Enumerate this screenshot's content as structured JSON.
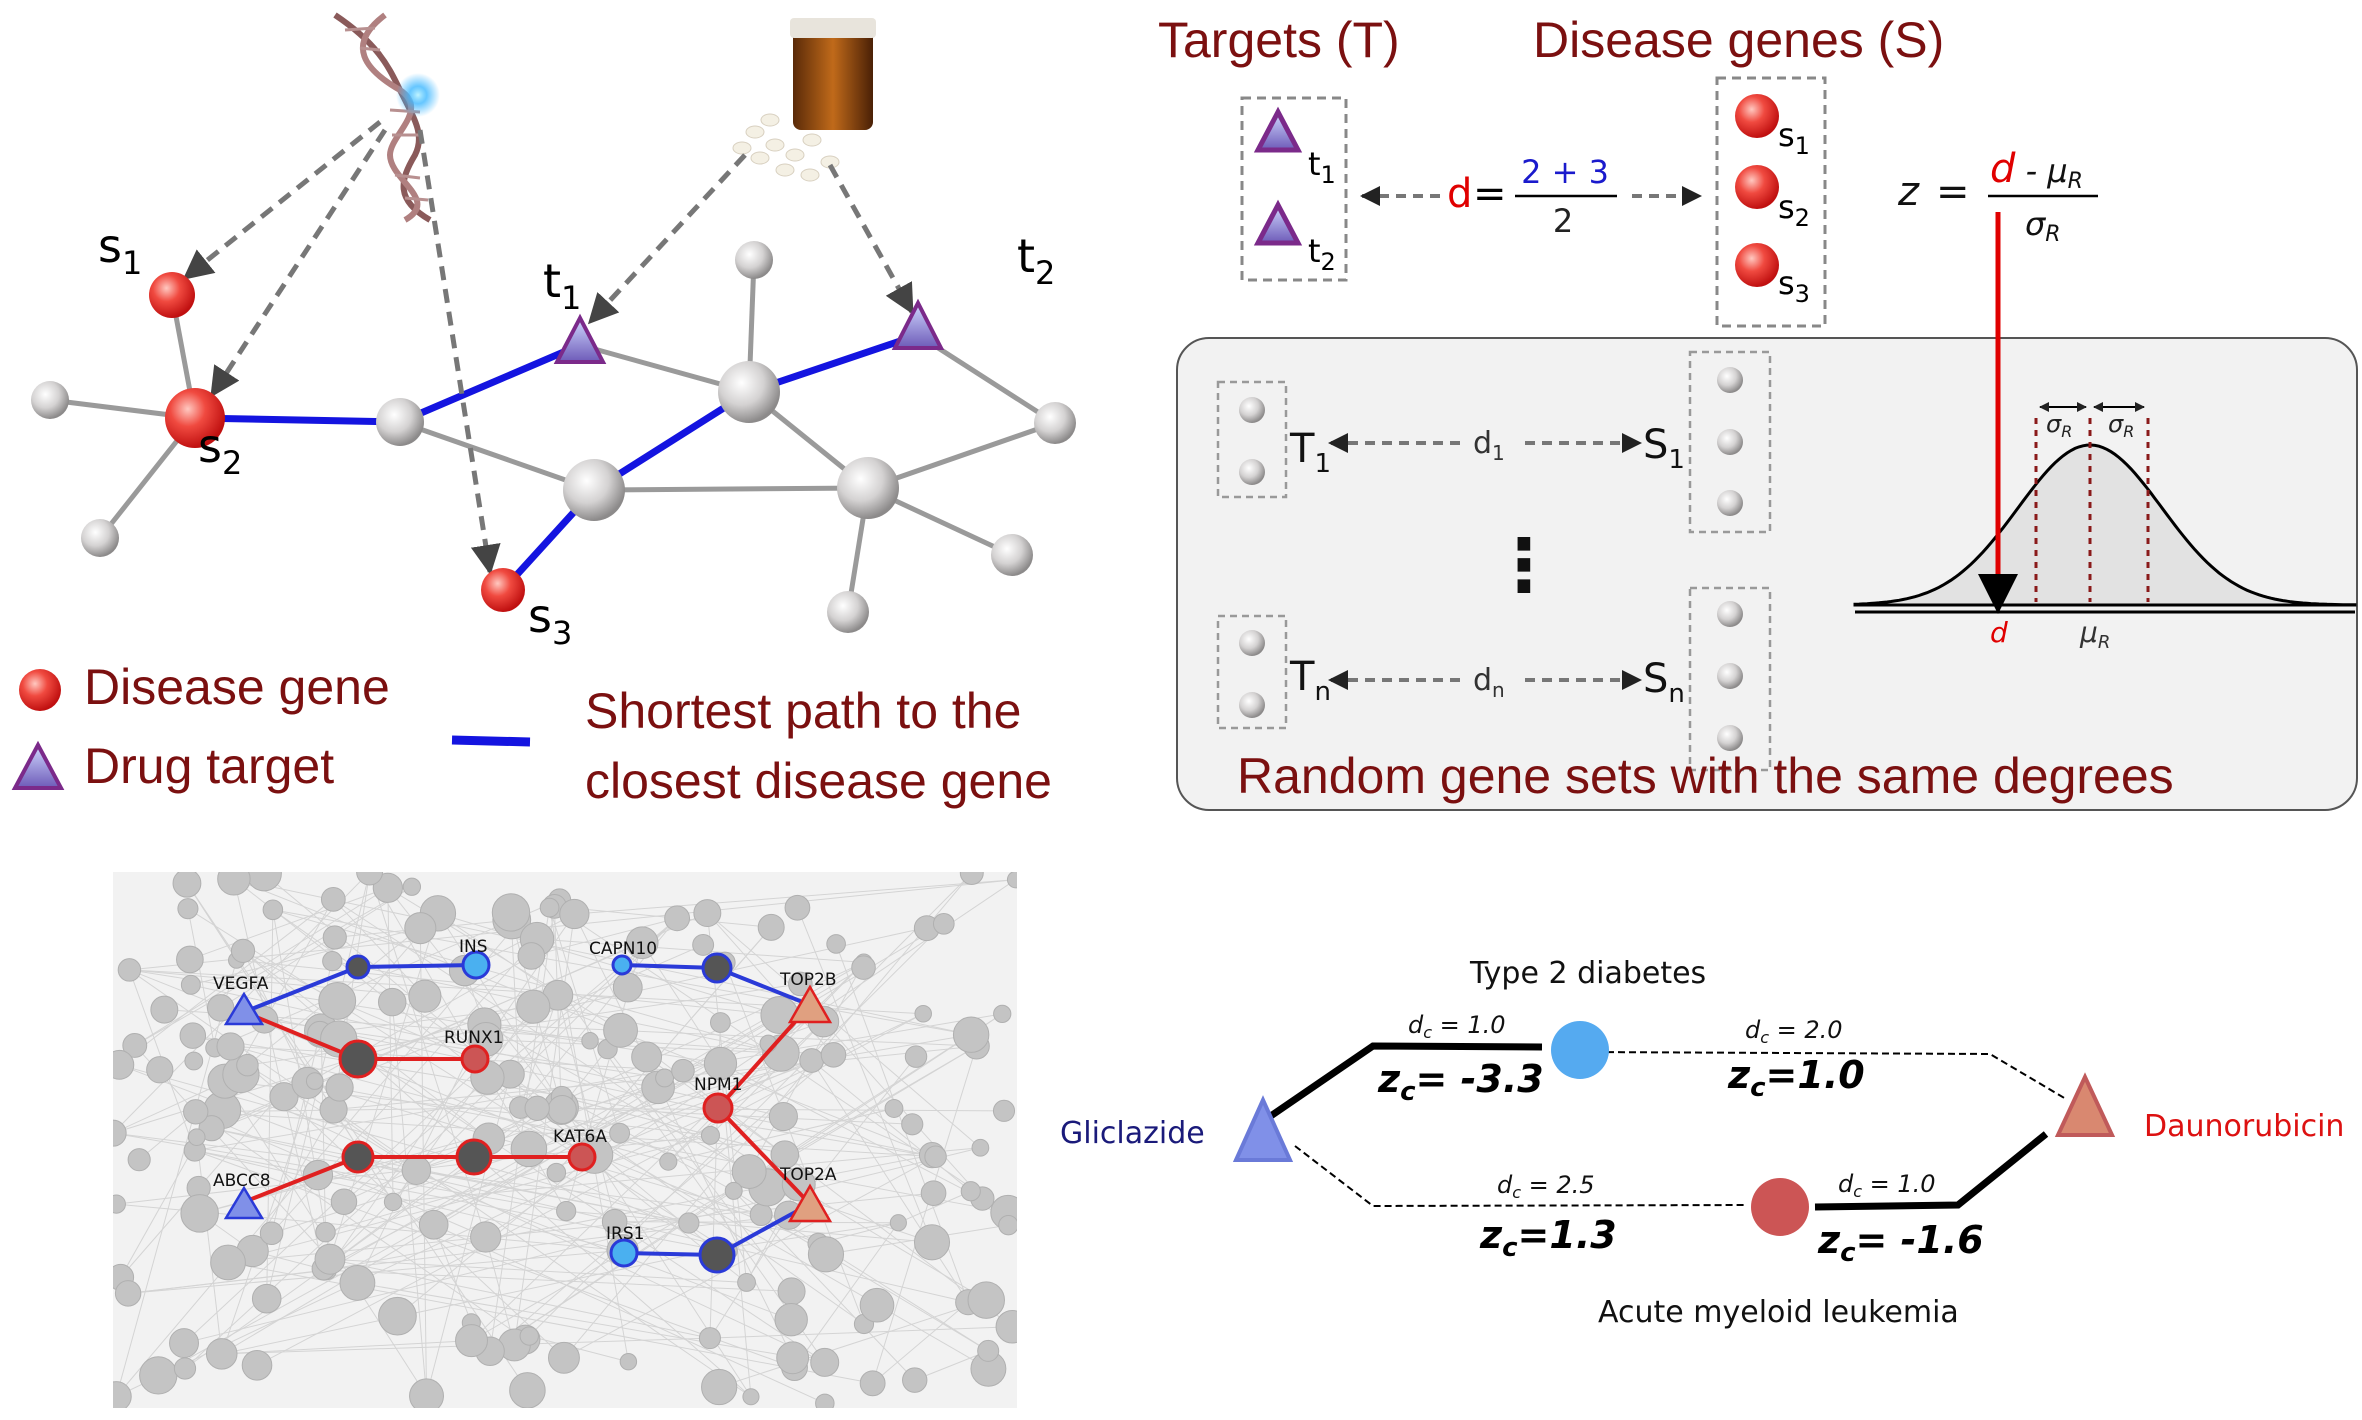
{
  "panel_a": {
    "labels": {
      "s1": {
        "base": "s",
        "sub": "1"
      },
      "s2": {
        "base": "s",
        "sub": "2"
      },
      "s3": {
        "base": "s",
        "sub": "3"
      },
      "t1": {
        "base": "t",
        "sub": "1"
      },
      "t2": {
        "base": "t",
        "sub": "2"
      }
    },
    "legend": {
      "disease_gene": "Disease gene",
      "drug_target": "Drug target",
      "shortest_path_line1": "Shortest path to the",
      "shortest_path_line2": "closest disease gene"
    },
    "colors": {
      "disease": "#e8302c",
      "target": "#7b3a9a",
      "path": "#1414e0",
      "edge": "#9a9a9a",
      "node": "#cccccc"
    }
  },
  "panel_b": {
    "targets_title": "Targets (T)",
    "disease_title": "Disease genes (S)",
    "t_labels": [
      {
        "base": "t",
        "sub": "1"
      },
      {
        "base": "t",
        "sub": "2"
      }
    ],
    "s_labels": [
      {
        "base": "s",
        "sub": "1"
      },
      {
        "base": "s",
        "sub": "2"
      },
      {
        "base": "s",
        "sub": "3"
      }
    ],
    "d_symbol": "d",
    "equals": "=",
    "fraction_numerator": "2 + 3",
    "fraction_denominator": "2",
    "z_label": "z",
    "z_equals": "=",
    "z_num_d": "d",
    "z_num_rest": " - μ",
    "z_num_sub": "R",
    "z_den": "σ",
    "z_den_sub": "R",
    "random": {
      "row1": {
        "T": "T",
        "T_sub": "1",
        "d": "d",
        "d_sub": "1",
        "S": "S",
        "S_sub": "1"
      },
      "dots": "⋮",
      "rown": {
        "T": "T",
        "T_sub": "n",
        "d": "d",
        "d_sub": "n",
        "S": "S",
        "S_sub": "n"
      },
      "caption": "Random gene sets with the same degrees"
    },
    "dist": {
      "sigma": "σ",
      "sigma_sub": "R",
      "d": "d",
      "mu": "μ",
      "mu_sub": "R"
    },
    "colors": {
      "title": "#7b1010",
      "red": "#e00000",
      "blue": "#1a1acc"
    }
  },
  "panel_c": {
    "genes": [
      "VEGFA",
      "INS",
      "CAPN10",
      "TOP2B",
      "RUNX1",
      "NPM1",
      "KAT6A",
      "TOP2A",
      "ABCC8",
      "IRS1"
    ]
  },
  "panel_d": {
    "disease_top": "Type 2 diabetes",
    "disease_bottom": "Acute myeloid leukemia",
    "drug_left": "Gliclazide",
    "drug_right": "Daunorubicin",
    "edges": [
      {
        "dc": "1.0",
        "zc": "-3.3",
        "dc_sep": " = ",
        "zc_sep": "= "
      },
      {
        "dc": "2.0",
        "zc": "1.0",
        "dc_sep": " = ",
        "zc_sep": "="
      },
      {
        "dc": "2.5",
        "zc": "1.3",
        "dc_sep": " = ",
        "zc_sep": "="
      },
      {
        "dc": "1.0",
        "zc": "-1.6",
        "dc_sep": " = ",
        "zc_sep": "= "
      }
    ],
    "d_letter": "d",
    "z_letter": "z",
    "c_sub": "c",
    "colors": {
      "left_drug": "#8090e8",
      "right_drug": "#d98870",
      "top_node": "#55aaf0",
      "bottom_node": "#cc5555",
      "left_text": "#1a1a7a",
      "right_text": "#dd1111"
    }
  }
}
